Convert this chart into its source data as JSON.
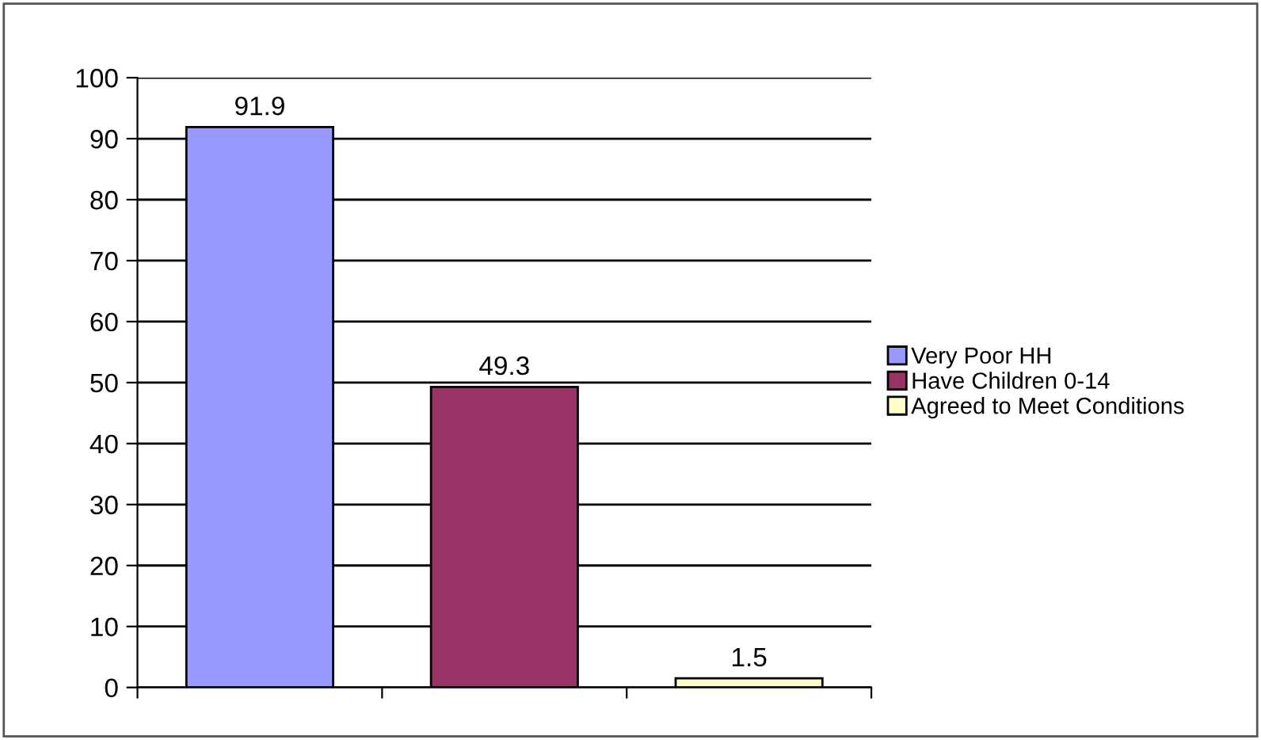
{
  "chart_data": {
    "type": "bar",
    "categories": [
      null,
      null,
      null
    ],
    "series": [
      {
        "name": "Very Poor HH",
        "color": "#9999ff",
        "values": [
          91.9,
          null,
          null
        ]
      },
      {
        "name": "Have Children 0-14",
        "color": "#993366",
        "values": [
          null,
          49.3,
          null
        ]
      },
      {
        "name": "Agreed to Meet Conditions",
        "color": "#ffffcc",
        "values": [
          null,
          null,
          1.5
        ]
      }
    ],
    "ylim": [
      0,
      100
    ],
    "yticks": [
      0,
      10,
      20,
      30,
      40,
      50,
      60,
      70,
      80,
      90,
      100
    ],
    "grid": "y",
    "legend": "right",
    "data_labels": true
  }
}
